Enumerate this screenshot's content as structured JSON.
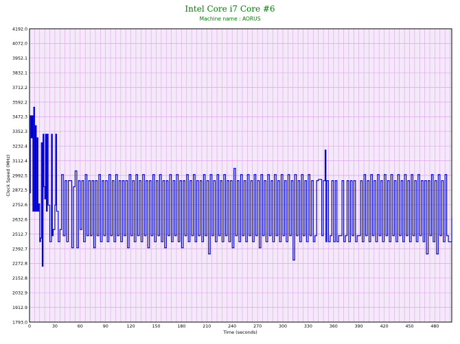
{
  "chart_data": {
    "type": "line",
    "title": "Intel Core i7 Core #6",
    "subtitle": "Machine name : AORUS",
    "xlabel": "Time (seconds)",
    "ylabel": "Clock Speed (MHz)",
    "xlim": [
      0,
      500
    ],
    "ylim": [
      1793.0,
      4192.0
    ],
    "x_ticks": [
      0,
      30,
      60,
      90,
      120,
      150,
      180,
      210,
      240,
      270,
      300,
      330,
      360,
      390,
      420,
      450,
      480
    ],
    "y_ticks": [
      "1793.0",
      "1912.9",
      "2032.9",
      "2152.8",
      "2272.8",
      "2392.7",
      "2512.7",
      "2632.6",
      "2752.6",
      "2872.5",
      "2992.5",
      "3112.4",
      "3232.4",
      "3352.3",
      "3472.3",
      "3592.2",
      "3712.2",
      "3832.1",
      "3952.1",
      "4072.0",
      "4192.0"
    ],
    "grid": true,
    "colors": {
      "line": "#0000cc",
      "plot_background": "#f6e8fb",
      "grid": "#d9a6e6",
      "title": "#008000"
    },
    "series": [
      {
        "values": [
          [
            0,
            2850
          ],
          [
            1,
            3480
          ],
          [
            2,
            3300
          ],
          [
            3,
            3480
          ],
          [
            4,
            2700
          ],
          [
            5,
            3550
          ],
          [
            6,
            2700
          ],
          [
            7,
            3400
          ],
          [
            8,
            2700
          ],
          [
            9,
            3300
          ],
          [
            10,
            2700
          ],
          [
            11,
            2760
          ],
          [
            12,
            2450
          ],
          [
            13,
            2480
          ],
          [
            14,
            3260
          ],
          [
            15,
            2250
          ],
          [
            16,
            3330
          ],
          [
            17,
            2900
          ],
          [
            18,
            2800
          ],
          [
            19,
            3330
          ],
          [
            20,
            2700
          ],
          [
            21,
            3330
          ],
          [
            22,
            2750
          ],
          [
            24,
            2450
          ],
          [
            26,
            3330
          ],
          [
            27,
            2500
          ],
          [
            28,
            2550
          ],
          [
            30,
            2750
          ],
          [
            31,
            3330
          ],
          [
            32,
            2700
          ],
          [
            34,
            2450
          ],
          [
            36,
            2550
          ],
          [
            38,
            3000
          ],
          [
            40,
            2500
          ],
          [
            42,
            2950
          ],
          [
            44,
            2450
          ],
          [
            46,
            2950
          ],
          [
            48,
            2950
          ],
          [
            50,
            2400
          ],
          [
            52,
            2900
          ],
          [
            54,
            3030
          ],
          [
            56,
            2400
          ],
          [
            58,
            2950
          ],
          [
            60,
            2550
          ],
          [
            62,
            2950
          ],
          [
            64,
            2450
          ],
          [
            66,
            3000
          ],
          [
            68,
            2500
          ],
          [
            70,
            2950
          ],
          [
            72,
            2500
          ],
          [
            74,
            2950
          ],
          [
            76,
            2400
          ],
          [
            78,
            2950
          ],
          [
            80,
            2500
          ],
          [
            82,
            3000
          ],
          [
            84,
            2450
          ],
          [
            86,
            2950
          ],
          [
            88,
            2500
          ],
          [
            90,
            2950
          ],
          [
            92,
            2450
          ],
          [
            94,
            3000
          ],
          [
            96,
            2500
          ],
          [
            98,
            2950
          ],
          [
            100,
            2450
          ],
          [
            102,
            3000
          ],
          [
            104,
            2500
          ],
          [
            106,
            2950
          ],
          [
            108,
            2450
          ],
          [
            110,
            2950
          ],
          [
            112,
            2500
          ],
          [
            114,
            2950
          ],
          [
            116,
            2400
          ],
          [
            118,
            3000
          ],
          [
            120,
            2500
          ],
          [
            122,
            2950
          ],
          [
            124,
            2450
          ],
          [
            126,
            3000
          ],
          [
            128,
            2500
          ],
          [
            130,
            2950
          ],
          [
            132,
            2450
          ],
          [
            134,
            3000
          ],
          [
            136,
            2500
          ],
          [
            138,
            2950
          ],
          [
            140,
            2400
          ],
          [
            142,
            2950
          ],
          [
            144,
            2500
          ],
          [
            146,
            3000
          ],
          [
            148,
            2450
          ],
          [
            150,
            2950
          ],
          [
            152,
            2500
          ],
          [
            154,
            3000
          ],
          [
            156,
            2450
          ],
          [
            158,
            2950
          ],
          [
            160,
            2400
          ],
          [
            162,
            2950
          ],
          [
            164,
            2500
          ],
          [
            166,
            3000
          ],
          [
            168,
            2450
          ],
          [
            170,
            2950
          ],
          [
            172,
            2500
          ],
          [
            174,
            3000
          ],
          [
            176,
            2450
          ],
          [
            178,
            2950
          ],
          [
            180,
            2400
          ],
          [
            182,
            2950
          ],
          [
            184,
            2500
          ],
          [
            186,
            3000
          ],
          [
            188,
            2450
          ],
          [
            190,
            2950
          ],
          [
            192,
            2500
          ],
          [
            194,
            3000
          ],
          [
            196,
            2450
          ],
          [
            198,
            2950
          ],
          [
            200,
            2500
          ],
          [
            202,
            2950
          ],
          [
            204,
            2450
          ],
          [
            206,
            3000
          ],
          [
            208,
            2500
          ],
          [
            210,
            2950
          ],
          [
            212,
            2350
          ],
          [
            214,
            3000
          ],
          [
            216,
            2500
          ],
          [
            218,
            2950
          ],
          [
            220,
            2450
          ],
          [
            222,
            3000
          ],
          [
            224,
            2500
          ],
          [
            226,
            2950
          ],
          [
            228,
            2450
          ],
          [
            230,
            3000
          ],
          [
            232,
            2500
          ],
          [
            234,
            2950
          ],
          [
            236,
            2450
          ],
          [
            238,
            2950
          ],
          [
            240,
            2400
          ],
          [
            242,
            3050
          ],
          [
            244,
            2500
          ],
          [
            246,
            2950
          ],
          [
            248,
            2450
          ],
          [
            250,
            3000
          ],
          [
            252,
            2500
          ],
          [
            254,
            2950
          ],
          [
            256,
            2450
          ],
          [
            258,
            3000
          ],
          [
            260,
            2500
          ],
          [
            262,
            2950
          ],
          [
            264,
            2450
          ],
          [
            266,
            3000
          ],
          [
            268,
            2500
          ],
          [
            270,
            2950
          ],
          [
            272,
            2400
          ],
          [
            274,
            3000
          ],
          [
            276,
            2500
          ],
          [
            278,
            2950
          ],
          [
            280,
            2450
          ],
          [
            282,
            3000
          ],
          [
            284,
            2500
          ],
          [
            286,
            2950
          ],
          [
            288,
            2450
          ],
          [
            290,
            3000
          ],
          [
            292,
            2500
          ],
          [
            294,
            2950
          ],
          [
            296,
            2450
          ],
          [
            298,
            3000
          ],
          [
            300,
            2500
          ],
          [
            302,
            2950
          ],
          [
            304,
            2450
          ],
          [
            306,
            3000
          ],
          [
            308,
            2500
          ],
          [
            310,
            2950
          ],
          [
            312,
            2300
          ],
          [
            314,
            3000
          ],
          [
            316,
            2500
          ],
          [
            318,
            2950
          ],
          [
            320,
            2450
          ],
          [
            322,
            3000
          ],
          [
            324,
            2500
          ],
          [
            326,
            2950
          ],
          [
            328,
            2450
          ],
          [
            330,
            3000
          ],
          [
            332,
            2500
          ],
          [
            334,
            2950
          ],
          [
            336,
            2450
          ],
          [
            338,
            2500
          ],
          [
            340,
            2950
          ],
          [
            342,
            2960
          ],
          [
            344,
            2960
          ],
          [
            346,
            2500
          ],
          [
            348,
            2950
          ],
          [
            350,
            3200
          ],
          [
            351,
            2450
          ],
          [
            352,
            2950
          ],
          [
            354,
            2450
          ],
          [
            356,
            2500
          ],
          [
            358,
            2950
          ],
          [
            360,
            2450
          ],
          [
            362,
            2950
          ],
          [
            364,
            2450
          ],
          [
            366,
            2500
          ],
          [
            368,
            2500
          ],
          [
            370,
            2950
          ],
          [
            372,
            2450
          ],
          [
            374,
            2500
          ],
          [
            376,
            2950
          ],
          [
            378,
            2450
          ],
          [
            380,
            2950
          ],
          [
            382,
            2500
          ],
          [
            384,
            2950
          ],
          [
            386,
            2450
          ],
          [
            388,
            2500
          ],
          [
            390,
            2500
          ],
          [
            392,
            2950
          ],
          [
            394,
            2450
          ],
          [
            396,
            3000
          ],
          [
            398,
            2500
          ],
          [
            400,
            2950
          ],
          [
            402,
            2450
          ],
          [
            404,
            3000
          ],
          [
            406,
            2500
          ],
          [
            408,
            2950
          ],
          [
            410,
            2450
          ],
          [
            412,
            3000
          ],
          [
            414,
            2500
          ],
          [
            416,
            2950
          ],
          [
            418,
            2450
          ],
          [
            420,
            3000
          ],
          [
            422,
            2500
          ],
          [
            424,
            2950
          ],
          [
            426,
            2450
          ],
          [
            428,
            3000
          ],
          [
            430,
            2500
          ],
          [
            432,
            2950
          ],
          [
            434,
            2450
          ],
          [
            436,
            3000
          ],
          [
            438,
            2500
          ],
          [
            440,
            2950
          ],
          [
            442,
            2450
          ],
          [
            444,
            3000
          ],
          [
            446,
            2500
          ],
          [
            448,
            2950
          ],
          [
            450,
            2450
          ],
          [
            452,
            3000
          ],
          [
            454,
            2500
          ],
          [
            456,
            2950
          ],
          [
            458,
            2450
          ],
          [
            460,
            3000
          ],
          [
            462,
            2500
          ],
          [
            464,
            2950
          ],
          [
            466,
            2450
          ],
          [
            468,
            2950
          ],
          [
            470,
            2350
          ],
          [
            472,
            2950
          ],
          [
            474,
            2500
          ],
          [
            476,
            3000
          ],
          [
            478,
            2450
          ],
          [
            480,
            2950
          ],
          [
            482,
            2350
          ],
          [
            484,
            3000
          ],
          [
            486,
            2500
          ],
          [
            488,
            2950
          ],
          [
            490,
            2450
          ],
          [
            492,
            3000
          ],
          [
            494,
            2500
          ],
          [
            496,
            2450
          ],
          [
            498,
            2450
          ],
          [
            500,
            2650
          ]
        ]
      }
    ]
  }
}
